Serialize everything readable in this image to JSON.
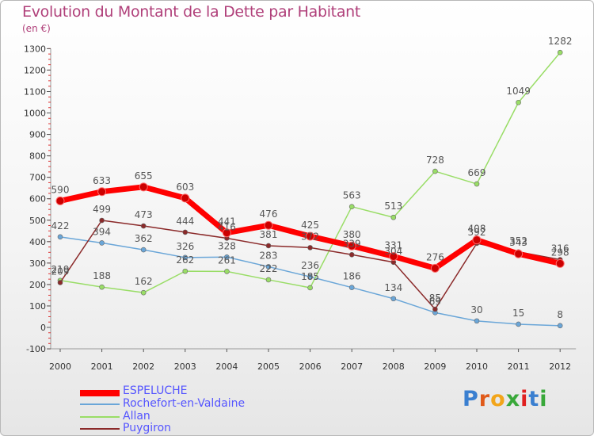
{
  "title": "Evolution du Montant de la Dette par Habitant",
  "unit": "(en €)",
  "logo": {
    "text": "Proxiti",
    "letter_colors": [
      "#3a7fd0",
      "#e05a1a",
      "#f2a51a",
      "#39a83a",
      "#e02020",
      "#3a7fd0",
      "#39a83a"
    ]
  },
  "chart_data": {
    "type": "line",
    "x": [
      "2000",
      "2001",
      "2002",
      "2003",
      "2004",
      "2005",
      "2006",
      "2007",
      "2008",
      "2009",
      "2010",
      "2011",
      "2012"
    ],
    "ylim": [
      -100,
      1300
    ],
    "yticks": [
      -100,
      0,
      100,
      200,
      300,
      400,
      500,
      600,
      700,
      800,
      900,
      1000,
      1100,
      1200,
      1300
    ],
    "grid": false,
    "legend_position": "bottom-left",
    "series": [
      {
        "name": "ESPELUCHE",
        "color": "#ff0000",
        "line_width": 7,
        "values": [
          590,
          633,
          655,
          603,
          441,
          476,
          425,
          380,
          331,
          276,
          408,
          343,
          298
        ],
        "labels": [
          "590",
          "633",
          "655",
          "603",
          "441",
          "476",
          "425",
          "380",
          "331",
          "276",
          "408",
          "343",
          "298"
        ]
      },
      {
        "name": "Rochefort-en-Valdaine",
        "color": "#6aa6d8",
        "line_width": 1.5,
        "values": [
          422,
          394,
          362,
          326,
          328,
          283,
          236,
          186,
          134,
          69,
          30,
          15,
          8
        ],
        "labels": [
          "422",
          "394",
          "362",
          "326",
          "328",
          "283",
          "236",
          "186",
          "134",
          "69",
          "30",
          "15",
          "8"
        ]
      },
      {
        "name": "Allan",
        "color": "#99dd66",
        "line_width": 1.5,
        "values": [
          219,
          188,
          162,
          262,
          261,
          222,
          185,
          563,
          513,
          728,
          669,
          1049,
          1282
        ],
        "labels": [
          "219",
          "188",
          "162",
          "262",
          "261",
          "222",
          "185",
          "563",
          "513",
          "728",
          "669",
          "1049",
          "1282"
        ]
      },
      {
        "name": "Puygiron",
        "color": "#8b2a2a",
        "line_width": 1.5,
        "values": [
          209,
          499,
          473,
          444,
          416,
          381,
          372,
          339,
          304,
          85,
          392,
          352,
          316
        ],
        "labels": [
          "209",
          "499",
          "473",
          "444",
          "416",
          "381",
          "372",
          "339",
          "304",
          "85",
          "392",
          "352",
          "316"
        ]
      }
    ]
  }
}
